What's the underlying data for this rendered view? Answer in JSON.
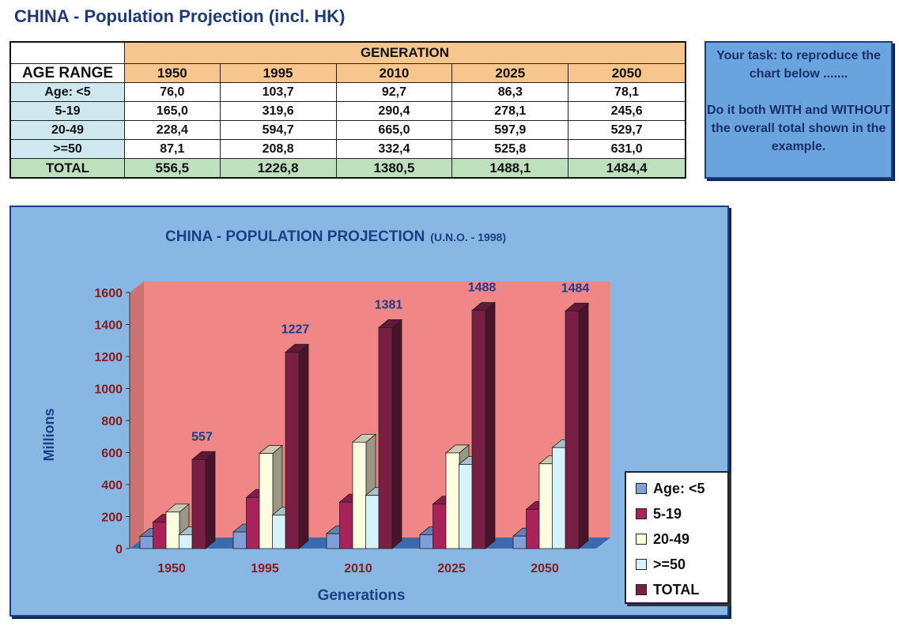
{
  "page_title": "CHINA - Population Projection (incl. HK)",
  "table": {
    "generation_label": "GENERATION",
    "age_range_label": "AGE RANGE",
    "years": [
      "1950",
      "1995",
      "2010",
      "2025",
      "2050"
    ],
    "rows": [
      {
        "label": "Age: <5",
        "values": [
          "76,0",
          "103,7",
          "92,7",
          "86,3",
          "78,1"
        ]
      },
      {
        "label": "5-19",
        "values": [
          "165,0",
          "319,6",
          "290,4",
          "278,1",
          "245,6"
        ]
      },
      {
        "label": "20-49",
        "values": [
          "228,4",
          "594,7",
          "665,0",
          "597,9",
          "529,7"
        ]
      },
      {
        "label": ">=50",
        "values": [
          "87,1",
          "208,8",
          "332,4",
          "525,8",
          "631,0"
        ]
      }
    ],
    "total": {
      "label": "TOTAL",
      "values": [
        "556,5",
        "1226,8",
        "1380,5",
        "1488,1",
        "1484,4"
      ]
    }
  },
  "task_box": {
    "line1": "Your task: to reproduce the chart below .......",
    "line2": "Do it both WITH and WITHOUT the overall total shown in the example."
  },
  "colors": {
    "panel": "#88b7e3",
    "wall": "#f08686",
    "floor": "#3d6aae",
    "title": "#1b3f85",
    "tick": "#8b1a1a"
  },
  "chart_data": {
    "type": "bar",
    "title": "CHINA - POPULATION PROJECTION",
    "subtitle": "(U.N.O. - 1998)",
    "xlabel": "Generations",
    "ylabel": "Millions",
    "categories": [
      "1950",
      "1995",
      "2010",
      "2025",
      "2050"
    ],
    "ylim": [
      0,
      1600
    ],
    "yticks": [
      "0",
      "200",
      "400",
      "600",
      "800",
      "1000",
      "1200",
      "1400",
      "1600"
    ],
    "series": [
      {
        "name": "Age: <5",
        "color": "#7f9fd8",
        "values": [
          76.0,
          103.7,
          92.7,
          86.3,
          78.1
        ]
      },
      {
        "name": "5-19",
        "color": "#a8235a",
        "values": [
          165.0,
          319.6,
          290.4,
          278.1,
          245.6
        ]
      },
      {
        "name": "20-49",
        "color": "#fdfde0",
        "values": [
          228.4,
          594.7,
          665.0,
          597.9,
          529.7
        ]
      },
      {
        "name": ">=50",
        "color": "#d6f2fa",
        "values": [
          87.1,
          208.8,
          332.4,
          525.8,
          631.0
        ]
      },
      {
        "name": "TOTAL",
        "color": "#7a1f44",
        "values": [
          556.5,
          1226.8,
          1380.5,
          1488.1,
          1484.4
        ]
      }
    ],
    "data_labels": [
      "557",
      "1227",
      "1381",
      "1488",
      "1484"
    ],
    "grid": false,
    "legend_position": "right"
  }
}
